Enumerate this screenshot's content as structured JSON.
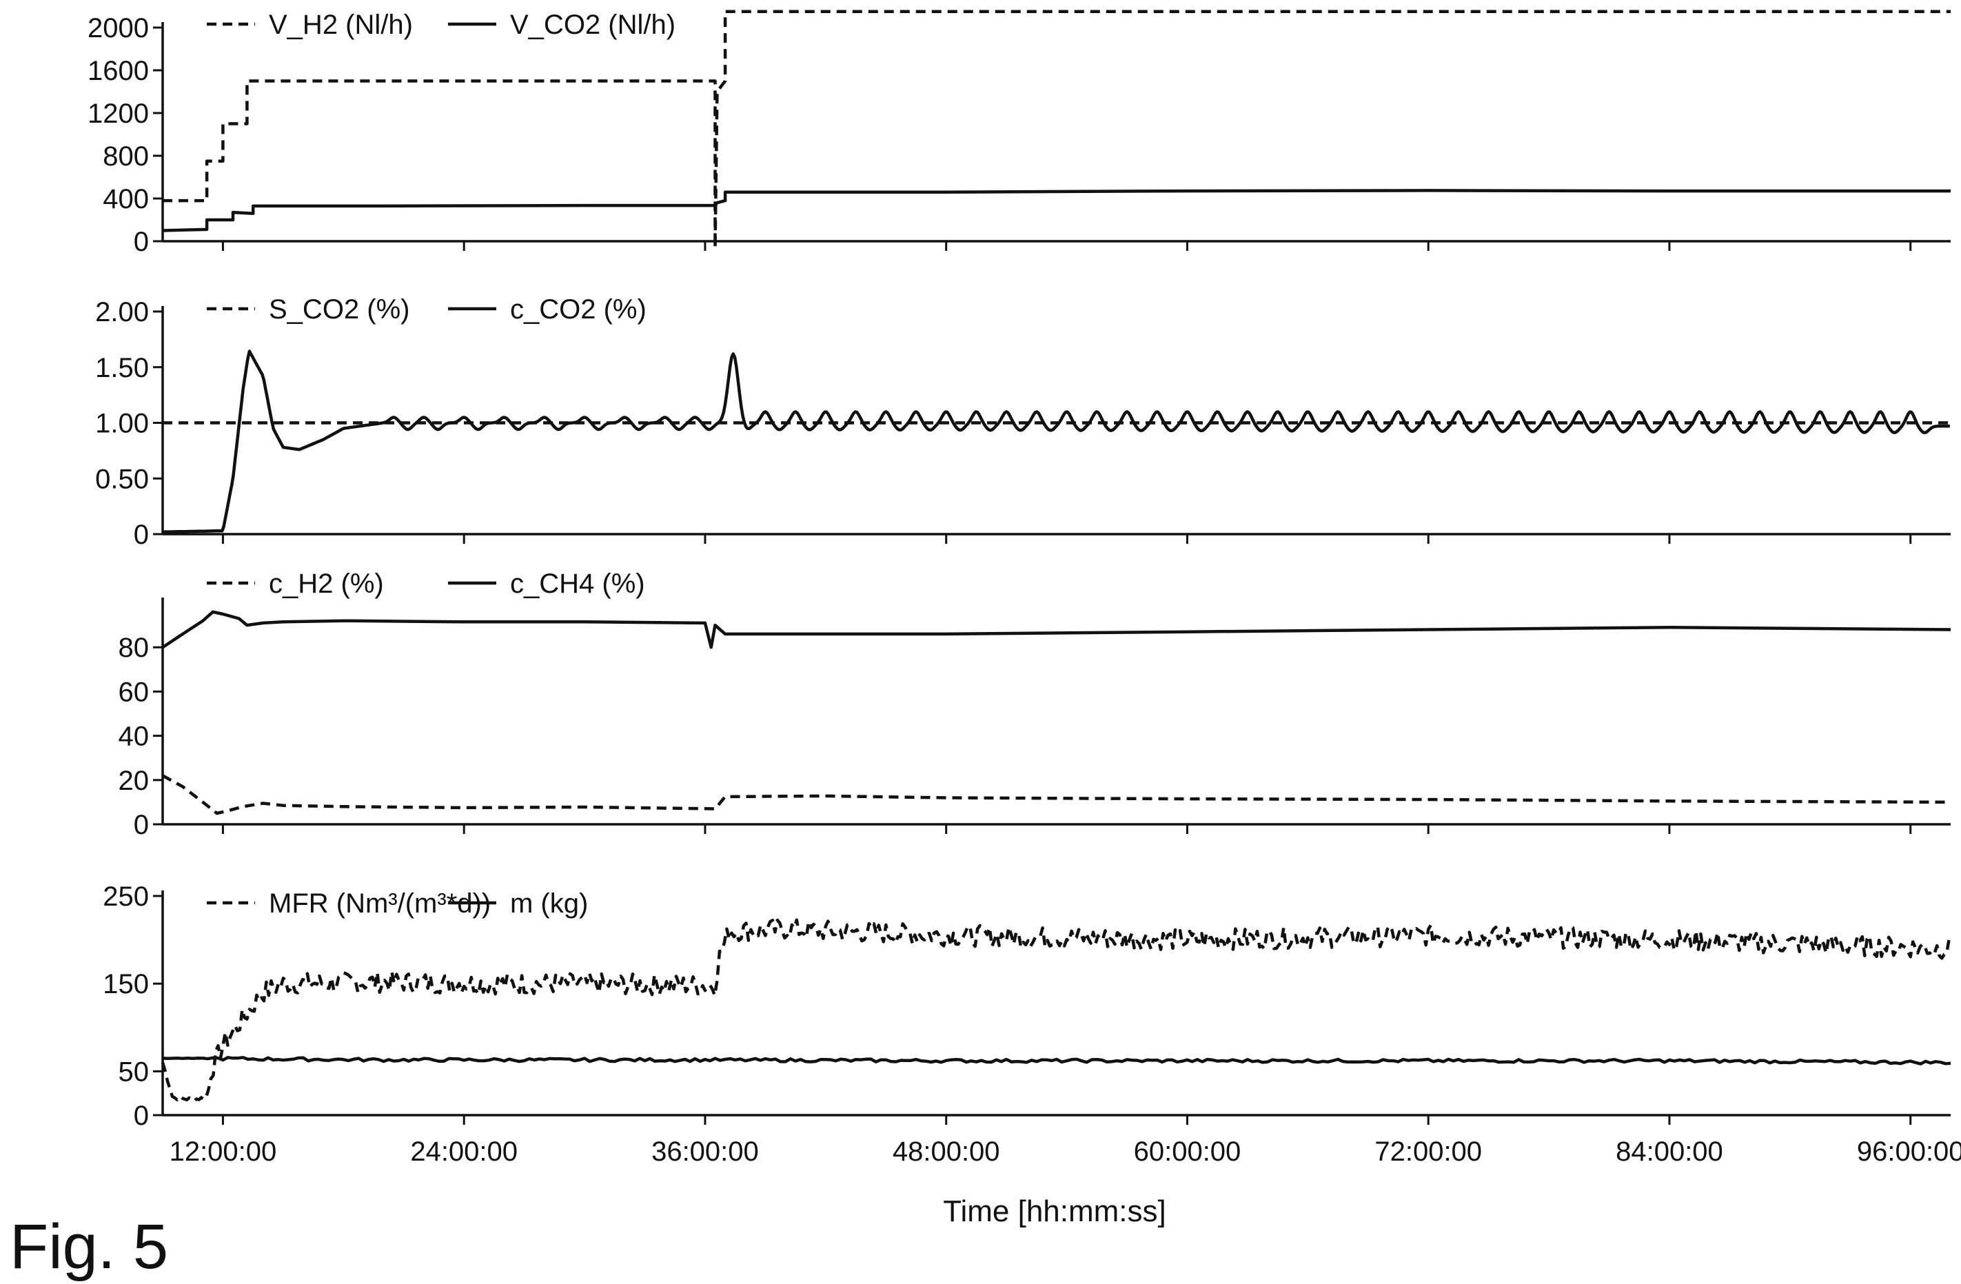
{
  "figure_label": "Fig. 5",
  "chart_data": [
    {
      "type": "line",
      "xlabel": "",
      "ylabel": "",
      "ylim": [
        0,
        2000
      ],
      "yticks": [
        0,
        400,
        800,
        1200,
        1600,
        2000
      ],
      "xlim": [
        9,
        98
      ],
      "xticks": [
        12,
        24,
        36,
        48,
        60,
        72,
        84,
        96
      ],
      "legend_position": "top-left",
      "series": [
        {
          "name": "V_H2 (Nl/h)",
          "style": "dashed",
          "points": [
            [
              9,
              380
            ],
            [
              11.2,
              380
            ],
            [
              11.2,
              750
            ],
            [
              12,
              750
            ],
            [
              12,
              1100
            ],
            [
              13.2,
              1100
            ],
            [
              13.2,
              1500
            ],
            [
              36.5,
              1500
            ],
            [
              36.5,
              -60
            ],
            [
              36.6,
              1400
            ],
            [
              37,
              1500
            ],
            [
              37,
              2150
            ],
            [
              98,
              2150
            ]
          ]
        },
        {
          "name": "V_CO2 (Nl/h)",
          "style": "solid",
          "points": [
            [
              9,
              100
            ],
            [
              11.2,
              110
            ],
            [
              11.2,
              200
            ],
            [
              12.5,
              200
            ],
            [
              12.5,
              270
            ],
            [
              13.5,
              260
            ],
            [
              13.5,
              330
            ],
            [
              20,
              330
            ],
            [
              30,
              335
            ],
            [
              36.5,
              335
            ],
            [
              36.6,
              360
            ],
            [
              37,
              380
            ],
            [
              37,
              460
            ],
            [
              48,
              460
            ],
            [
              60,
              470
            ],
            [
              72,
              475
            ],
            [
              84,
              470
            ],
            [
              98,
              470
            ]
          ]
        }
      ]
    },
    {
      "type": "line",
      "xlabel": "",
      "ylabel": "",
      "ylim": [
        0,
        2.0
      ],
      "yticks": [
        "0",
        "0.50",
        "1.00",
        "1.50",
        "2.00"
      ],
      "xlim": [
        9,
        98
      ],
      "xticks": [
        12,
        24,
        36,
        48,
        60,
        72,
        84,
        96
      ],
      "legend_position": "top-left",
      "series": [
        {
          "name": "S_CO2 (%)",
          "style": "dashed",
          "constant": 1.0
        },
        {
          "name": "c_CO2 (%)",
          "style": "solid",
          "baseline": [
            [
              9,
              0.02
            ],
            [
              12,
              0.03
            ],
            [
              12.5,
              0.5
            ],
            [
              13,
              1.3
            ],
            [
              13.3,
              1.65
            ],
            [
              13.6,
              1.55
            ],
            [
              14,
              1.42
            ],
            [
              14.5,
              0.95
            ],
            [
              15,
              0.78
            ],
            [
              15.8,
              0.76
            ],
            [
              17,
              0.85
            ],
            [
              18,
              0.95
            ],
            [
              20,
              1.0
            ],
            [
              36,
              1.0
            ],
            [
              98,
              0.97
            ]
          ],
          "spikes": [
            [
              37.4,
              1.62
            ],
            [
              20.5,
              1.05
            ],
            [
              22,
              1.05
            ],
            [
              24,
              1.05
            ],
            [
              26,
              1.05
            ],
            [
              28,
              1.05
            ],
            [
              30,
              1.05
            ],
            [
              32,
              1.05
            ],
            [
              34,
              1.05
            ],
            [
              35.5,
              1.05
            ],
            [
              39,
              1.1
            ],
            [
              40.5,
              1.1
            ],
            [
              42,
              1.1
            ],
            [
              43.5,
              1.1
            ],
            [
              45,
              1.1
            ],
            [
              46.5,
              1.1
            ],
            [
              48,
              1.1
            ],
            [
              49.5,
              1.1
            ],
            [
              51,
              1.1
            ],
            [
              52.5,
              1.1
            ],
            [
              54,
              1.1
            ],
            [
              55.5,
              1.1
            ],
            [
              57,
              1.1
            ],
            [
              58.5,
              1.1
            ],
            [
              60,
              1.1
            ],
            [
              61.5,
              1.1
            ],
            [
              63,
              1.1
            ],
            [
              64.5,
              1.1
            ],
            [
              66,
              1.1
            ],
            [
              67.5,
              1.1
            ],
            [
              69,
              1.1
            ],
            [
              70.5,
              1.1
            ],
            [
              72,
              1.1
            ],
            [
              73.5,
              1.1
            ],
            [
              75,
              1.1
            ],
            [
              76.5,
              1.1
            ],
            [
              78,
              1.1
            ],
            [
              79.5,
              1.1
            ],
            [
              81,
              1.1
            ],
            [
              82.5,
              1.1
            ],
            [
              84,
              1.1
            ],
            [
              85.5,
              1.1
            ],
            [
              87,
              1.1
            ],
            [
              88.5,
              1.1
            ],
            [
              90,
              1.1
            ],
            [
              91.5,
              1.1
            ],
            [
              93,
              1.1
            ],
            [
              94.5,
              1.1
            ],
            [
              96,
              1.1
            ]
          ]
        }
      ]
    },
    {
      "type": "line",
      "xlabel": "",
      "ylabel": "",
      "ylim": [
        0,
        100
      ],
      "yticks": [
        0,
        20,
        40,
        60,
        80
      ],
      "xlim": [
        9,
        98
      ],
      "xticks": [
        12,
        24,
        36,
        48,
        60,
        72,
        84,
        96
      ],
      "legend_position": "top-left",
      "series": [
        {
          "name": "c_H2 (%)",
          "style": "dashed",
          "points": [
            [
              9,
              22
            ],
            [
              10,
              17
            ],
            [
              11,
              10
            ],
            [
              11.7,
              5
            ],
            [
              12.2,
              6
            ],
            [
              13,
              8
            ],
            [
              14,
              9.5
            ],
            [
              15,
              8.5
            ],
            [
              18,
              8
            ],
            [
              24,
              7.5
            ],
            [
              30,
              7.8
            ],
            [
              36.5,
              7
            ],
            [
              37,
              12.5
            ],
            [
              42,
              12.8
            ],
            [
              48,
              12
            ],
            [
              60,
              11.5
            ],
            [
              72,
              11.2
            ],
            [
              84,
              10.5
            ],
            [
              98,
              10
            ]
          ]
        },
        {
          "name": "c_CH4 (%)",
          "style": "solid",
          "points": [
            [
              9,
              80
            ],
            [
              10,
              86
            ],
            [
              11,
              92
            ],
            [
              11.5,
              96
            ],
            [
              12,
              95
            ],
            [
              12.8,
              93
            ],
            [
              13.2,
              90
            ],
            [
              14,
              91
            ],
            [
              15,
              91.5
            ],
            [
              18,
              92
            ],
            [
              24,
              91.5
            ],
            [
              30,
              91.5
            ],
            [
              36,
              91
            ],
            [
              36.3,
              80
            ],
            [
              36.5,
              90
            ],
            [
              37,
              86
            ],
            [
              48,
              86
            ],
            [
              60,
              87
            ],
            [
              72,
              88
            ],
            [
              84,
              89
            ],
            [
              98,
              88
            ]
          ]
        }
      ]
    },
    {
      "type": "line",
      "xlabel": "Time [hh:mm:ss]",
      "ylabel": "",
      "ylim": [
        0,
        250
      ],
      "yticks": [
        0,
        50,
        150,
        250
      ],
      "xlim": [
        9,
        98
      ],
      "xticks": [
        12,
        24,
        36,
        48,
        60,
        72,
        84,
        96
      ],
      "xtick_labels": [
        "12:00:00",
        "24:00:00",
        "36:00:00",
        "48:00:00",
        "60:00:00",
        "72:00:00",
        "84:00:00",
        "96:00:00"
      ],
      "legend_position": "top-left",
      "series": [
        {
          "name": "MFR (Nm³/(m³*d))",
          "style": "dashed",
          "points": [
            [
              9,
              60
            ],
            [
              9.5,
              20
            ],
            [
              10.5,
              18
            ],
            [
              11.2,
              20
            ],
            [
              11.5,
              55
            ],
            [
              12,
              80
            ],
            [
              13,
              110
            ],
            [
              14,
              140
            ],
            [
              15,
              150
            ],
            [
              20,
              152
            ],
            [
              25,
              150
            ],
            [
              30,
              150
            ],
            [
              36.5,
              148
            ],
            [
              36.7,
              180
            ],
            [
              37.2,
              210
            ],
            [
              40,
              212
            ],
            [
              48,
              205
            ],
            [
              60,
              200
            ],
            [
              72,
              205
            ],
            [
              84,
              200
            ],
            [
              98,
              190
            ]
          ],
          "noise_amplitude": 12
        },
        {
          "name": "m (kg)",
          "style": "solid",
          "points": [
            [
              9,
              65
            ],
            [
              20,
              63
            ],
            [
              36,
              63
            ],
            [
              48,
              62
            ],
            [
              60,
              62
            ],
            [
              72,
              62
            ],
            [
              84,
              62
            ],
            [
              98,
              60
            ]
          ],
          "noise_amplitude": 3
        }
      ]
    }
  ]
}
